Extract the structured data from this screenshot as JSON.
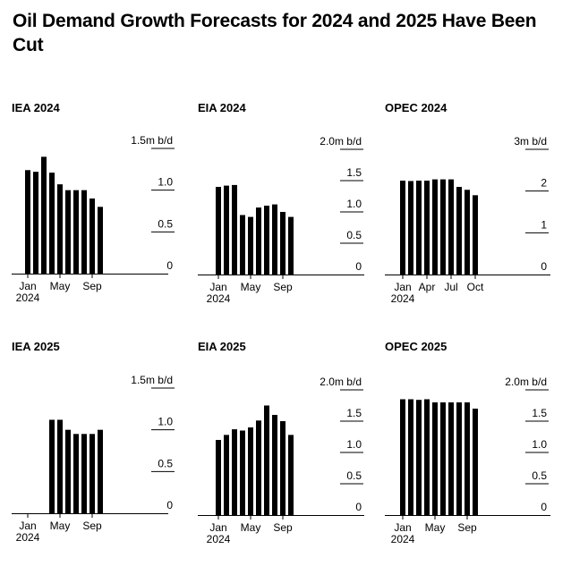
{
  "title": "Oil Demand Growth Forecasts for 2024 and 2025 Have Been Cut",
  "colors": {
    "bar": "#000000",
    "axis": "#000000",
    "background": "#ffffff"
  },
  "chart_data": [
    {
      "panel": "IEA 2024",
      "type": "bar",
      "title": "IEA 2024",
      "ylabel": "m b/d",
      "ymax": 1.5,
      "ticks": [
        {
          "value": 1.5,
          "label": "1.5m b/d"
        },
        {
          "value": 1.0,
          "label": "1.0"
        },
        {
          "value": 0.5,
          "label": "0.5"
        },
        {
          "value": 0,
          "label": "0"
        }
      ],
      "categories": [
        "Jan 2024",
        "Feb 2024",
        "Mar 2024",
        "Apr 2024",
        "May 2024",
        "Jun 2024",
        "Jul 2024",
        "Aug 2024",
        "Sep 2024",
        "Oct 2024",
        "Nov 2024",
        "Dec 2024"
      ],
      "values": [
        1.24,
        1.22,
        1.4,
        1.21,
        1.07,
        1.0,
        1.0,
        1.0,
        0.9,
        0.8,
        null,
        null
      ],
      "xticks": [
        {
          "index": 0,
          "label": "Jan",
          "sublabel": "2024"
        },
        {
          "index": 4,
          "label": "May"
        },
        {
          "index": 8,
          "label": "Sep"
        }
      ]
    },
    {
      "panel": "EIA 2024",
      "type": "bar",
      "title": "EIA 2024",
      "ylabel": "m b/d",
      "ymax": 2.0,
      "ticks": [
        {
          "value": 2.0,
          "label": "2.0m b/d"
        },
        {
          "value": 1.5,
          "label": "1.5"
        },
        {
          "value": 1.0,
          "label": "1.0"
        },
        {
          "value": 0.5,
          "label": "0.5"
        },
        {
          "value": 0,
          "label": "0"
        }
      ],
      "categories": [
        "Jan 2024",
        "Feb 2024",
        "Mar 2024",
        "Apr 2024",
        "May 2024",
        "Jun 2024",
        "Jul 2024",
        "Aug 2024",
        "Sep 2024",
        "Oct 2024",
        "Nov 2024",
        "Dec 2024"
      ],
      "values": [
        1.4,
        1.42,
        1.43,
        0.95,
        0.92,
        1.07,
        1.1,
        1.12,
        1.0,
        0.92,
        null,
        null
      ],
      "xticks": [
        {
          "index": 0,
          "label": "Jan",
          "sublabel": "2024"
        },
        {
          "index": 4,
          "label": "May"
        },
        {
          "index": 8,
          "label": "Sep"
        }
      ]
    },
    {
      "panel": "OPEC 2024",
      "type": "bar",
      "title": "OPEC 2024",
      "ylabel": "m b/d",
      "ymax": 3,
      "ticks": [
        {
          "value": 3,
          "label": "3m b/d"
        },
        {
          "value": 2,
          "label": "2"
        },
        {
          "value": 1,
          "label": "1"
        },
        {
          "value": 0,
          "label": "0"
        }
      ],
      "categories": [
        "Jan 2024",
        "Feb 2024",
        "Mar 2024",
        "Apr 2024",
        "May 2024",
        "Jun 2024",
        "Jul 2024",
        "Aug 2024",
        "Sep 2024",
        "Oct 2024",
        "Nov 2024",
        "Dec 2024"
      ],
      "values": [
        2.25,
        2.24,
        2.25,
        2.25,
        2.28,
        2.28,
        2.28,
        2.1,
        2.03,
        1.9,
        null,
        null
      ],
      "xticks": [
        {
          "index": 0,
          "label": "Jan",
          "sublabel": "2024"
        },
        {
          "index": 3,
          "label": "Apr"
        },
        {
          "index": 6,
          "label": "Jul"
        },
        {
          "index": 9,
          "label": "Oct"
        }
      ]
    },
    {
      "panel": "IEA 2025",
      "type": "bar",
      "title": "IEA 2025",
      "ylabel": "m b/d",
      "ymax": 1.5,
      "ticks": [
        {
          "value": 1.5,
          "label": "1.5m b/d"
        },
        {
          "value": 1.0,
          "label": "1.0"
        },
        {
          "value": 0.5,
          "label": "0.5"
        },
        {
          "value": 0,
          "label": "0"
        }
      ],
      "categories": [
        "Jan 2024",
        "Feb 2024",
        "Mar 2024",
        "Apr 2024",
        "May 2024",
        "Jun 2024",
        "Jul 2024",
        "Aug 2024",
        "Sep 2024",
        "Oct 2024",
        "Nov 2024",
        "Dec 2024"
      ],
      "values": [
        null,
        null,
        null,
        1.12,
        1.12,
        1.0,
        0.95,
        0.95,
        0.95,
        1.0,
        null,
        null
      ],
      "xticks": [
        {
          "index": 0,
          "label": "Jan",
          "sublabel": "2024"
        },
        {
          "index": 4,
          "label": "May"
        },
        {
          "index": 8,
          "label": "Sep"
        }
      ]
    },
    {
      "panel": "EIA 2025",
      "type": "bar",
      "title": "EIA 2025",
      "ylabel": "m b/d",
      "ymax": 2.0,
      "ticks": [
        {
          "value": 2.0,
          "label": "2.0m b/d"
        },
        {
          "value": 1.5,
          "label": "1.5"
        },
        {
          "value": 1.0,
          "label": "1.0"
        },
        {
          "value": 0.5,
          "label": "0.5"
        },
        {
          "value": 0,
          "label": "0"
        }
      ],
      "categories": [
        "Jan 2024",
        "Feb 2024",
        "Mar 2024",
        "Apr 2024",
        "May 2024",
        "Jun 2024",
        "Jul 2024",
        "Aug 2024",
        "Sep 2024",
        "Oct 2024",
        "Nov 2024",
        "Dec 2024"
      ],
      "values": [
        1.2,
        1.28,
        1.37,
        1.35,
        1.4,
        1.51,
        1.75,
        1.6,
        1.5,
        1.28,
        null,
        null
      ],
      "xticks": [
        {
          "index": 0,
          "label": "Jan",
          "sublabel": "2024"
        },
        {
          "index": 4,
          "label": "May"
        },
        {
          "index": 8,
          "label": "Sep"
        }
      ]
    },
    {
      "panel": "OPEC 2025",
      "type": "bar",
      "title": "OPEC 2025",
      "ylabel": "m b/d",
      "ymax": 2.0,
      "ticks": [
        {
          "value": 2.0,
          "label": "2.0m b/d"
        },
        {
          "value": 1.5,
          "label": "1.5"
        },
        {
          "value": 1.0,
          "label": "1.0"
        },
        {
          "value": 0.5,
          "label": "0.5"
        },
        {
          "value": 0,
          "label": "0"
        }
      ],
      "categories": [
        "Jan 2024",
        "Feb 2024",
        "Mar 2024",
        "Apr 2024",
        "May 2024",
        "Jun 2024",
        "Jul 2024",
        "Aug 2024",
        "Sep 2024",
        "Oct 2024",
        "Nov 2024",
        "Dec 2024"
      ],
      "values": [
        1.85,
        1.85,
        1.84,
        1.85,
        1.8,
        1.8,
        1.8,
        1.8,
        1.8,
        1.7,
        null,
        null
      ],
      "xticks": [
        {
          "index": 0,
          "label": "Jan",
          "sublabel": "2024"
        },
        {
          "index": 4,
          "label": "May"
        },
        {
          "index": 8,
          "label": "Sep"
        }
      ]
    }
  ]
}
